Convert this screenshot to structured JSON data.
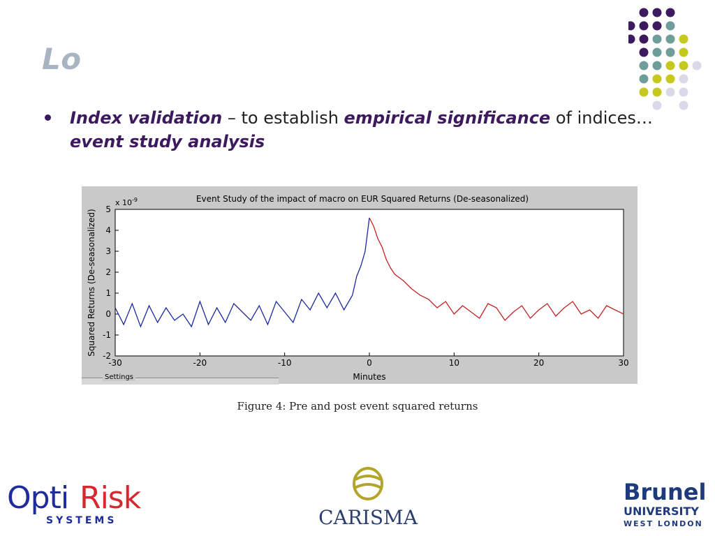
{
  "slide": {
    "title": "Lo",
    "bullet": {
      "part1": "Index validation",
      "part2": " – to establish ",
      "part3": "empirical significance",
      "part4": " of indices… ",
      "part5": "event study analysis"
    }
  },
  "figure": {
    "caption": "Figure 4: Pre and post event squared returns",
    "settings_label": "Settings"
  },
  "chart_data": {
    "type": "line",
    "title": "Event Study of the impact of macro on EUR Squared Returns (De-seasonalized)",
    "xlabel": "Minutes",
    "ylabel": "Squared Returns (De-seasonalized)",
    "y_multiplier_label": "x 10",
    "y_multiplier_exponent": "-9",
    "xlim": [
      -30,
      30
    ],
    "ylim": [
      -2,
      5
    ],
    "x_ticks": [
      -30,
      -20,
      -10,
      0,
      10,
      20,
      30
    ],
    "y_ticks": [
      -2,
      -1,
      0,
      1,
      2,
      3,
      4,
      5
    ],
    "colors": {
      "pre": "#1a2a9c",
      "post": "#c42222"
    },
    "series": [
      {
        "segment": "pre",
        "x": [
          -30,
          -29,
          -28,
          -27,
          -26,
          -25,
          -24,
          -23,
          -22,
          -21,
          -20,
          -19,
          -18,
          -17,
          -16,
          -15,
          -14,
          -13,
          -12,
          -11,
          -10,
          -9,
          -8,
          -7,
          -6,
          -5,
          -4,
          -3,
          -2,
          -1.5,
          -1,
          -0.5,
          0
        ],
        "values": [
          0.3,
          -0.5,
          0.5,
          -0.6,
          0.4,
          -0.4,
          0.3,
          -0.3,
          0.0,
          -0.6,
          0.6,
          -0.5,
          0.3,
          -0.4,
          0.5,
          0.1,
          -0.3,
          0.4,
          -0.5,
          0.6,
          0.1,
          -0.4,
          0.7,
          0.2,
          1.0,
          0.3,
          1.0,
          0.2,
          0.9,
          1.8,
          2.3,
          3.0,
          4.6
        ]
      },
      {
        "segment": "post",
        "x": [
          0,
          0.5,
          1,
          1.5,
          2,
          2.5,
          3,
          4,
          5,
          6,
          7,
          8,
          9,
          10,
          11,
          12,
          13,
          14,
          15,
          16,
          17,
          18,
          19,
          20,
          21,
          22,
          23,
          24,
          25,
          26,
          27,
          28,
          29,
          30
        ],
        "values": [
          4.6,
          4.2,
          3.6,
          3.2,
          2.6,
          2.2,
          1.9,
          1.6,
          1.2,
          0.9,
          0.7,
          0.3,
          0.6,
          0.0,
          0.4,
          0.1,
          -0.2,
          0.5,
          0.3,
          -0.3,
          0.1,
          0.4,
          -0.2,
          0.2,
          0.5,
          -0.1,
          0.3,
          0.6,
          0.0,
          0.2,
          -0.2,
          0.4,
          0.2,
          0.0
        ]
      }
    ],
    "grid": false
  },
  "logos": {
    "optirisk": {
      "name_a": "Opti",
      "name_b": "Risk",
      "sub": "SYSTEMS"
    },
    "carisma": {
      "name": "CARISMA"
    },
    "brunel": {
      "line1": "Brunel",
      "line2": "UNIVERSITY",
      "line3": "WEST LONDON"
    }
  },
  "brand_colors": {
    "purple": "#3d1a5e",
    "teal": "#6f9d9a",
    "olive": "#c7c81f",
    "lavender": "#d9d9ea"
  }
}
